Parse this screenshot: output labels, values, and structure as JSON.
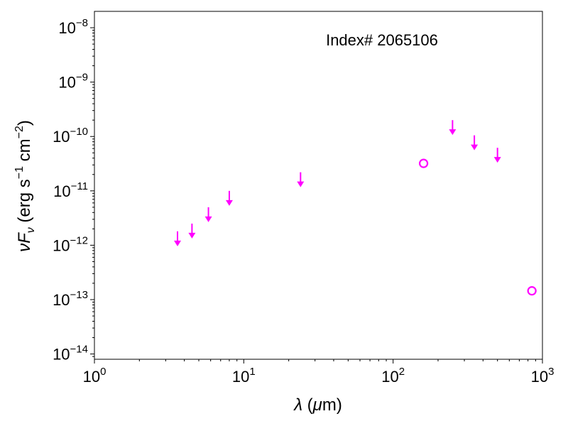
{
  "chart_data": {
    "type": "scatter",
    "title": "",
    "annotation": "Index# 2065106",
    "xlabel": {
      "symbol": "λ",
      "unit_open": " (",
      "unit_mu": "μ",
      "unit_rest": "m)"
    },
    "ylabel": {
      "nu": "ν",
      "F": "F",
      "sub": "ν",
      "open": " (erg s",
      "exp1": "−1",
      "mid": " cm",
      "exp2": "−2",
      "close": ")"
    },
    "x_scale": "log",
    "y_scale": "log",
    "xlim": [
      1,
      1000
    ],
    "ylim": [
      8e-15,
      2e-08
    ],
    "x_ticks": [
      {
        "value": 1,
        "base": "10",
        "exp": "0"
      },
      {
        "value": 10,
        "base": "10",
        "exp": "1"
      },
      {
        "value": 100,
        "base": "10",
        "exp": "2"
      },
      {
        "value": 1000,
        "base": "10",
        "exp": "3"
      }
    ],
    "y_ticks": [
      {
        "value": 1e-14,
        "base": "10",
        "exp": "−14"
      },
      {
        "value": 1e-13,
        "base": "10",
        "exp": "−13"
      },
      {
        "value": 1e-12,
        "base": "10",
        "exp": "−12"
      },
      {
        "value": 1e-11,
        "base": "10",
        "exp": "−11"
      },
      {
        "value": 1e-10,
        "base": "10",
        "exp": "−10"
      },
      {
        "value": 1e-09,
        "base": "10",
        "exp": "−9"
      },
      {
        "value": 1e-08,
        "base": "10",
        "exp": "−8"
      }
    ],
    "grid": false,
    "marker_color": "#ff00ff",
    "series": [
      {
        "marker": "upper-limit-arrow",
        "points": [
          {
            "x": 3.6,
            "y": 1.8e-12
          },
          {
            "x": 4.5,
            "y": 2.5e-12
          },
          {
            "x": 5.8,
            "y": 5e-12
          },
          {
            "x": 8.0,
            "y": 1e-11
          },
          {
            "x": 24,
            "y": 2.2e-11
          },
          {
            "x": 250,
            "y": 2e-10
          },
          {
            "x": 350,
            "y": 1.05e-10
          },
          {
            "x": 500,
            "y": 6.2e-11
          }
        ]
      },
      {
        "marker": "open-circle",
        "points": [
          {
            "x": 160,
            "y": 3.2e-11
          },
          {
            "x": 850,
            "y": 1.45e-13
          }
        ]
      }
    ]
  }
}
